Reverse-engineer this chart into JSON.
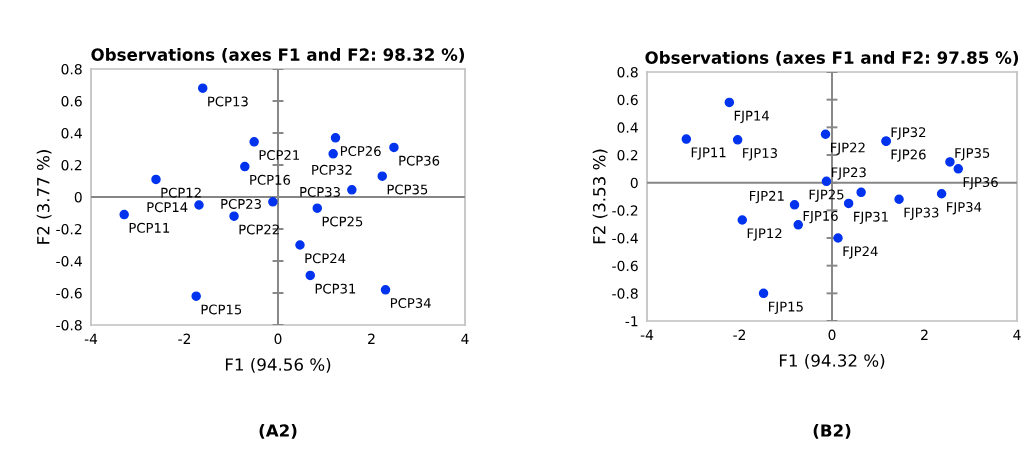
{
  "chart_data": [
    {
      "type": "scatter",
      "title": "Observations (axes F1 and F2: 98.32 %)",
      "xlabel": "F1 (94.56 %)",
      "ylabel": "F2 (3.77 %)",
      "xlim": [
        -4,
        4
      ],
      "ylim": [
        -0.8,
        0.8
      ],
      "xticks": [
        -4,
        -2,
        0,
        2,
        4
      ],
      "yticks": [
        -0.8,
        -0.6,
        -0.4,
        -0.2,
        0,
        0.2,
        0.4,
        0.6,
        0.8
      ],
      "grid": false,
      "marker": "circle",
      "ref_lines": [
        {
          "axis": "x",
          "value": 0,
          "color": "#868686"
        },
        {
          "axis": "y",
          "value": 0,
          "color": "#868686"
        }
      ],
      "series": [
        {
          "color": "#0033ee",
          "x": [
            -1.61,
            -0.51,
            -0.71,
            -2.61,
            -3.29,
            -1.69,
            -0.94,
            -0.11,
            1.23,
            1.18,
            2.48,
            2.23,
            1.58,
            0.84,
            0.47,
            0.69,
            2.3,
            -1.75
          ],
          "values": [
            0.68,
            0.345,
            0.19,
            0.11,
            -0.11,
            -0.05,
            -0.12,
            -0.03,
            0.37,
            0.27,
            0.31,
            0.13,
            0.045,
            -0.07,
            -0.3,
            -0.49,
            -0.58,
            -0.62
          ]
        }
      ],
      "annotations": [
        {
          "text": "PCP13",
          "x": -1.61,
          "y": 0.68
        },
        {
          "text": "PCP21",
          "x": -0.51,
          "y": 0.345
        },
        {
          "text": "PCP16",
          "x": -0.71,
          "y": 0.19
        },
        {
          "text": "PCP12",
          "x": -2.61,
          "y": 0.11
        },
        {
          "text": "PCP11",
          "x": -3.29,
          "y": -0.11
        },
        {
          "text": "PCP14",
          "x": -1.69,
          "y": -0.05
        },
        {
          "text": "PCP22",
          "x": -0.94,
          "y": -0.12
        },
        {
          "text": "PCP23",
          "x": -0.11,
          "y": -0.03
        },
        {
          "text": "PCP26",
          "x": 1.23,
          "y": 0.37
        },
        {
          "text": "PCP32",
          "x": 1.18,
          "y": 0.27
        },
        {
          "text": "PCP36",
          "x": 2.48,
          "y": 0.31
        },
        {
          "text": "PCP35",
          "x": 2.23,
          "y": 0.13
        },
        {
          "text": "PCP33",
          "x": 1.58,
          "y": 0.045
        },
        {
          "text": "PCP25",
          "x": 0.84,
          "y": -0.07
        },
        {
          "text": "PCP24",
          "x": 0.47,
          "y": -0.3
        },
        {
          "text": "PCP31",
          "x": 0.69,
          "y": -0.49
        },
        {
          "text": "PCP34",
          "x": 2.3,
          "y": -0.58
        },
        {
          "text": "PCP15",
          "x": -1.75,
          "y": -0.62
        },
        "(A2)"
      ]
    },
    {
      "type": "scatter",
      "title": "Observations (axes F1 and F2: 97.85 %)",
      "xlabel": "F1 (94.32 %)",
      "ylabel": "F2 (3.53 %)",
      "xlim": [
        -4,
        4
      ],
      "ylim": [
        -1,
        0.8
      ],
      "xticks": [
        -4,
        -2,
        0,
        2,
        4
      ],
      "yticks": [
        -1,
        -0.8,
        -0.6,
        -0.4,
        -0.2,
        0,
        0.2,
        0.4,
        0.6,
        0.8
      ],
      "grid": false,
      "marker": "circle",
      "ref_lines": [
        {
          "axis": "x",
          "value": 0,
          "color": "#868686"
        },
        {
          "axis": "y",
          "value": 0,
          "color": "#868686"
        }
      ],
      "series": [
        {
          "color": "#0033ee",
          "x": [
            -2.22,
            -3.15,
            -2.04,
            -0.14,
            1.17,
            1.17,
            2.55,
            2.73,
            -0.12,
            0.63,
            0.36,
            1.45,
            2.37,
            -0.81,
            -1.94,
            -0.73,
            0.13,
            -1.48
          ],
          "values": [
            0.58,
            0.315,
            0.31,
            0.35,
            0.3,
            0.3,
            0.15,
            0.1,
            0.01,
            -0.07,
            -0.15,
            -0.12,
            -0.08,
            -0.16,
            -0.27,
            -0.305,
            -0.4,
            -0.8
          ]
        }
      ],
      "annotations": [
        {
          "text": "FJP14",
          "x": -2.22,
          "y": 0.58
        },
        {
          "text": "FJP11",
          "x": -3.15,
          "y": 0.315
        },
        {
          "text": "FJP13",
          "x": -2.04,
          "y": 0.31
        },
        {
          "text": "FJP22",
          "x": -0.14,
          "y": 0.35
        },
        {
          "text": "FJP26",
          "x": 1.17,
          "y": 0.3
        },
        {
          "text": "FJP32",
          "x": 1.17,
          "y": 0.3
        },
        {
          "text": "FJP35",
          "x": 2.55,
          "y": 0.15
        },
        {
          "text": "FJP36",
          "x": 2.73,
          "y": 0.1
        },
        {
          "text": "FJP23",
          "x": -0.12,
          "y": 0.01
        },
        {
          "text": "FJP25",
          "x": 0.63,
          "y": -0.07
        },
        {
          "text": "FJP31",
          "x": 0.36,
          "y": -0.15
        },
        {
          "text": "FJP33",
          "x": 1.45,
          "y": -0.12
        },
        {
          "text": "FJP34",
          "x": 2.37,
          "y": -0.08
        },
        {
          "text": "FJP21",
          "x": -0.81,
          "y": -0.16
        },
        {
          "text": "FJP12",
          "x": -1.94,
          "y": -0.27
        },
        {
          "text": "FJP16",
          "x": -0.73,
          "y": -0.305
        },
        {
          "text": "FJP24",
          "x": 0.13,
          "y": -0.4
        },
        {
          "text": "FJP15",
          "x": -1.48,
          "y": -0.8
        },
        "(B2)"
      ]
    }
  ]
}
